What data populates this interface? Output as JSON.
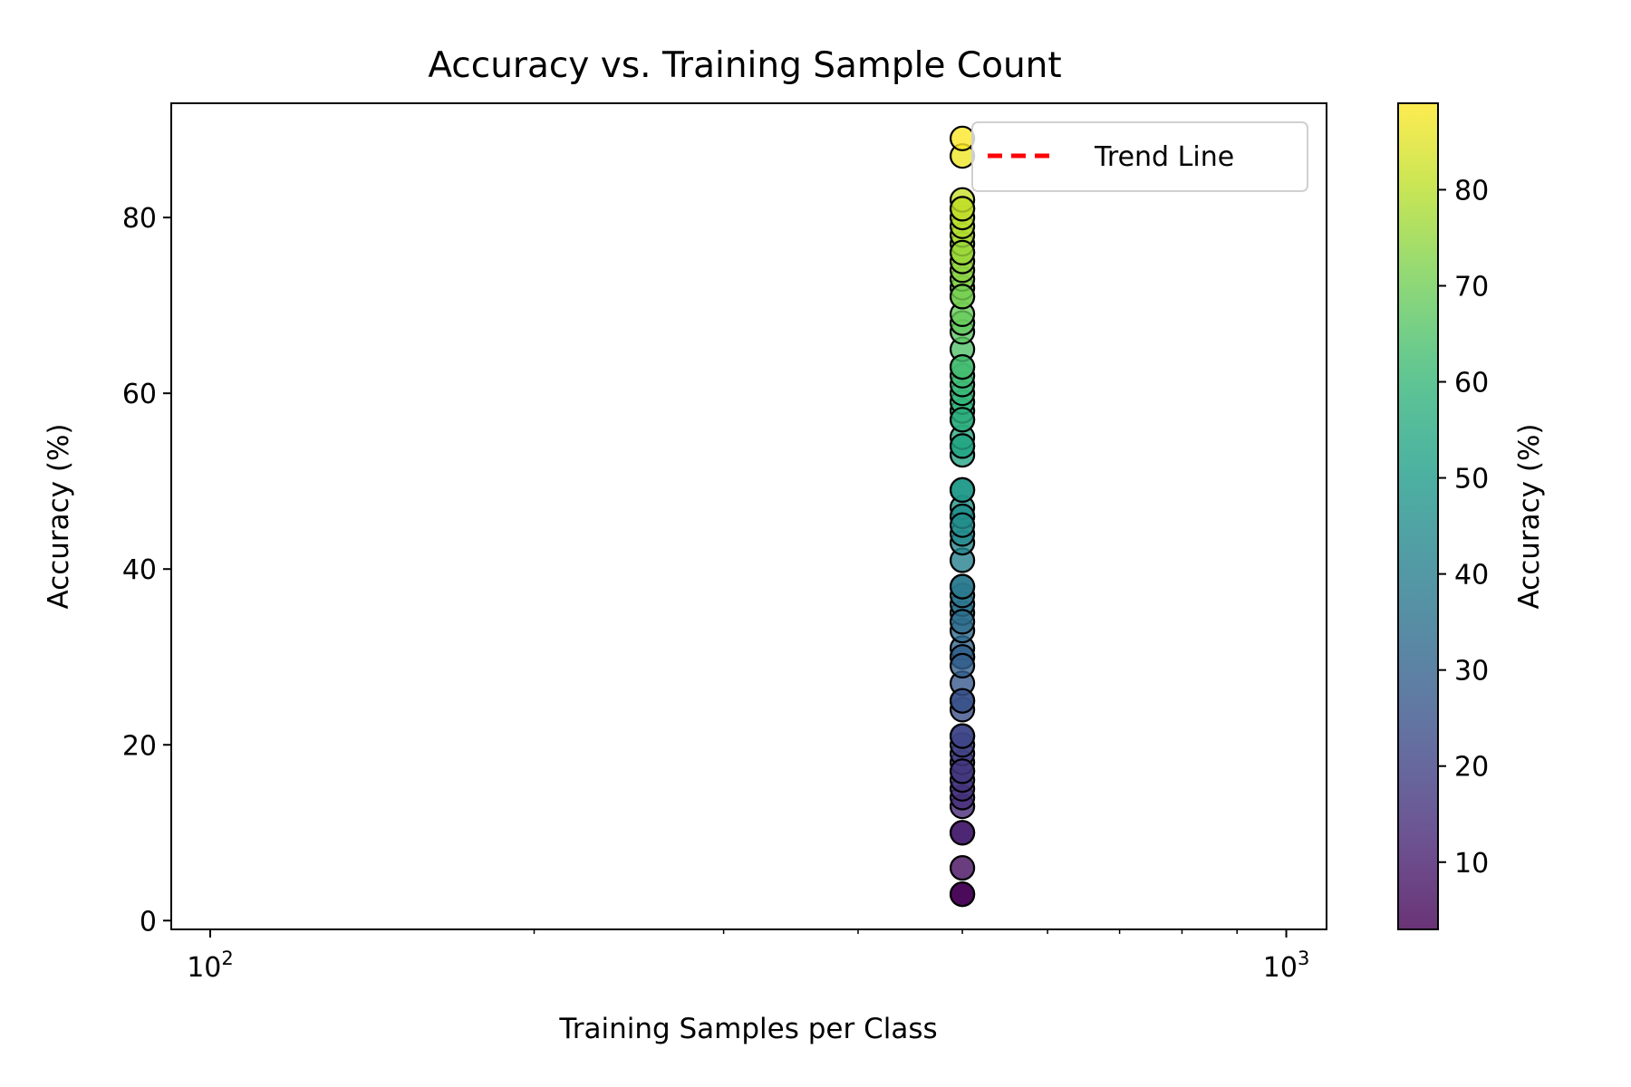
{
  "chart_data": {
    "type": "scatter",
    "title": "Accuracy vs. Training Sample Count",
    "xlabel": "Training Samples per Class",
    "ylabel": "Accuracy (%)",
    "x_scale": "log",
    "xlim": [
      92,
      1090
    ],
    "ylim": [
      -1,
      93
    ],
    "x_ticks": [
      100,
      1000
    ],
    "x_tick_labels": [
      "10",
      "10"
    ],
    "x_tick_exponents": [
      "2",
      "3"
    ],
    "y_ticks": [
      0,
      20,
      40,
      60,
      80
    ],
    "y_tick_labels": [
      "0",
      "20",
      "40",
      "60",
      "80"
    ],
    "grid": false,
    "point_edge_color": "#000000",
    "point_alpha": 0.8,
    "colormap": "viridis",
    "colormap_range": [
      3,
      89
    ],
    "colorbar": {
      "label": "Accuracy (%)",
      "ticks": [
        10,
        20,
        30,
        40,
        50,
        60,
        70,
        80
      ],
      "tick_labels": [
        "10",
        "20",
        "30",
        "40",
        "50",
        "60",
        "70",
        "80"
      ]
    },
    "series": [
      {
        "x": [
          500,
          500,
          500,
          500,
          500,
          500,
          500,
          500,
          500,
          500,
          500,
          500,
          500,
          500,
          500,
          500,
          500,
          500,
          500,
          500,
          500,
          500,
          500,
          500,
          500,
          500,
          500,
          500,
          500,
          500,
          500,
          500,
          500,
          500,
          500,
          500,
          500,
          500,
          500,
          500,
          500,
          500,
          500,
          500,
          500,
          500,
          500,
          500,
          500,
          500,
          500,
          500,
          500,
          500,
          500,
          500,
          500,
          500,
          500,
          500,
          500,
          500,
          500,
          500,
          500,
          500,
          500,
          500,
          500,
          500,
          500,
          500,
          500,
          500
        ],
        "y": [
          3,
          6,
          10,
          13,
          14,
          15,
          16,
          17,
          18,
          19,
          20,
          21,
          24,
          25,
          27,
          30,
          31,
          33,
          35,
          36,
          37,
          38,
          41,
          43,
          44,
          46,
          47,
          49,
          53,
          54,
          55,
          57,
          58,
          59,
          60,
          61,
          62,
          63,
          65,
          67,
          68,
          69,
          71,
          72,
          73,
          74,
          75,
          76,
          77,
          78,
          79,
          80,
          81,
          82,
          87,
          89,
          3,
          10,
          17,
          21,
          25,
          30,
          38,
          46,
          49,
          57,
          63,
          71,
          76,
          81,
          45,
          54,
          34,
          29
        ]
      },
      {
        "name": "Trend Line",
        "type": "line",
        "style": "dashed",
        "color": "#ff0000",
        "x": [],
        "y": []
      }
    ],
    "legend": {
      "placement": "top-right",
      "entries": [
        "Trend Line"
      ]
    }
  }
}
